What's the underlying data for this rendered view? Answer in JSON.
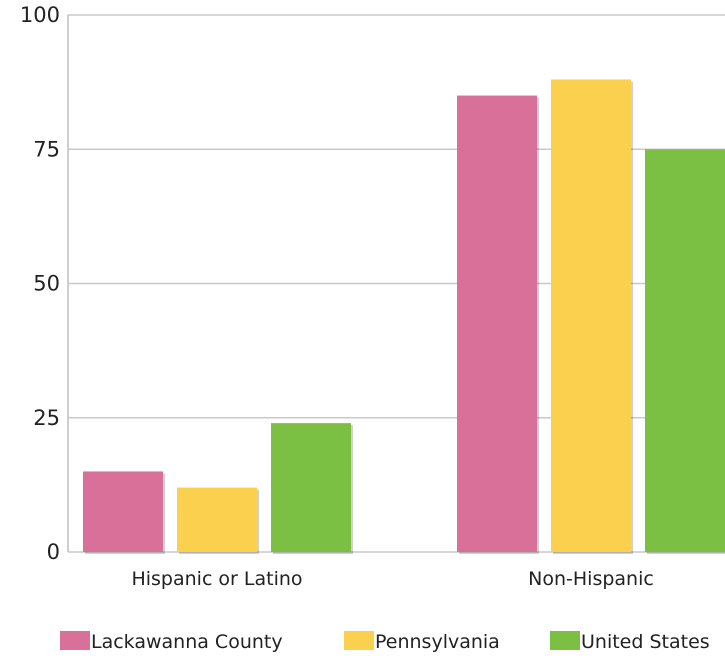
{
  "chart_data": {
    "type": "bar",
    "categories": [
      "Hispanic or Latino",
      "Non-Hispanic"
    ],
    "series": [
      {
        "name": "Lackawanna County",
        "values": [
          15,
          85
        ],
        "color": "#d9709a"
      },
      {
        "name": "Pennsylvania",
        "values": [
          12,
          88
        ],
        "color": "#fcd04f"
      },
      {
        "name": "United States",
        "values": [
          24,
          75
        ],
        "color": "#7bc043"
      }
    ],
    "yticks": [
      "0",
      "25",
      "50",
      "75",
      "100"
    ],
    "ylim": [
      0,
      100
    ],
    "grid": true,
    "legend": "bottom"
  }
}
